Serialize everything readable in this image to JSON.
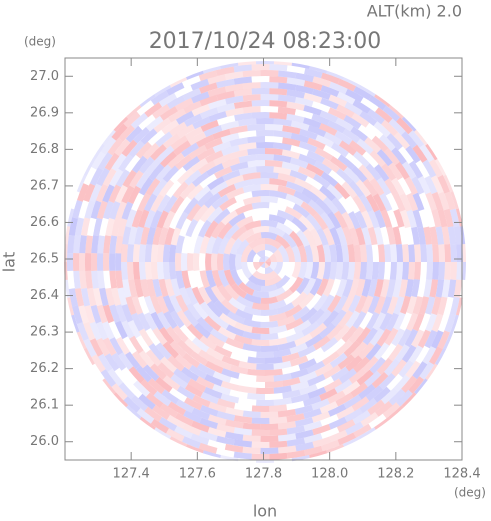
{
  "chart_data": {
    "type": "ppi",
    "title": "2017/10/24 08:23:00",
    "subtitle": "ALT(km) 2.0",
    "x_label": "lon",
    "y_label": "lat",
    "x_unit": "(deg)",
    "y_unit": "(deg)",
    "xlim": [
      127.2,
      128.4
    ],
    "ylim": [
      25.95,
      27.05
    ],
    "xticks": [
      127.4,
      127.6,
      127.8,
      {
        "value": 128,
        "label": "128.0"
      },
      128.2,
      128.4
    ],
    "yticks": [
      {
        "value": 26,
        "label": "26.0"
      },
      26.1,
      26.2,
      26.3,
      26.4,
      26.5,
      26.6,
      26.7,
      26.8,
      26.9,
      {
        "value": 27,
        "label": "27.0"
      }
    ]
  }
}
